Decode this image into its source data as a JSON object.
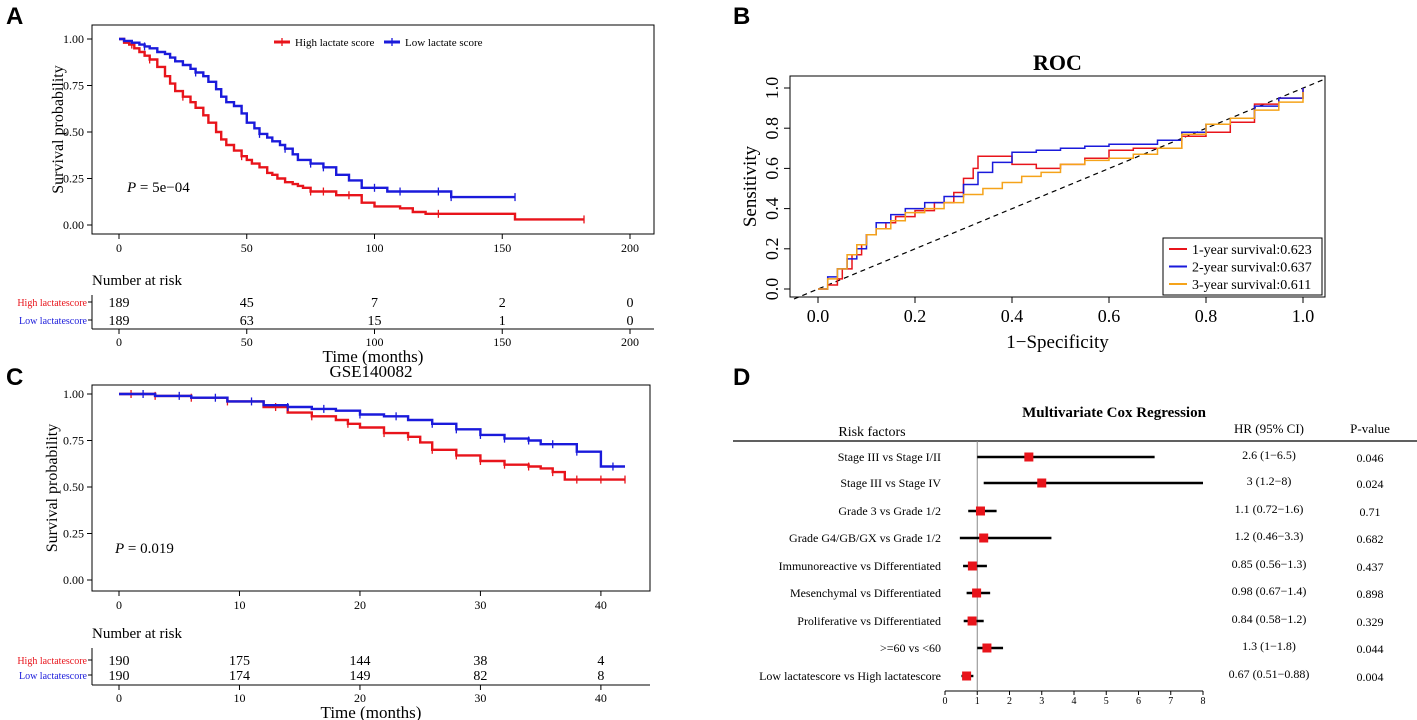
{
  "chart_data": [
    {
      "panel": "A",
      "type": "line",
      "title": "",
      "xlabel": "Time (months)",
      "ylabel": "Survival probability",
      "xlim": [
        0,
        200
      ],
      "ylim": [
        0,
        1
      ],
      "xticks": [
        0,
        50,
        100,
        150,
        200
      ],
      "yticks": [
        0.0,
        0.25,
        0.5,
        0.75,
        1.0
      ],
      "pvalue_label": "P",
      "pvalue_text": " = 5e−04",
      "legend": [
        "High lactate score",
        "Low lactate score"
      ],
      "series": [
        {
          "name": "High lactate score",
          "color": "#e8141b",
          "x": [
            0,
            2,
            4,
            6,
            8,
            10,
            12,
            15,
            18,
            20,
            22,
            25,
            28,
            30,
            33,
            35,
            38,
            40,
            42,
            45,
            48,
            50,
            52,
            55,
            58,
            60,
            62,
            65,
            68,
            70,
            72,
            75,
            80,
            85,
            90,
            95,
            100,
            105,
            110,
            115,
            120,
            125,
            130,
            135,
            140,
            145,
            150,
            155,
            160,
            165,
            170,
            175,
            180,
            182
          ],
          "y": [
            1.0,
            0.98,
            0.97,
            0.95,
            0.93,
            0.91,
            0.89,
            0.85,
            0.8,
            0.76,
            0.72,
            0.69,
            0.66,
            0.63,
            0.59,
            0.55,
            0.5,
            0.46,
            0.43,
            0.4,
            0.37,
            0.35,
            0.33,
            0.31,
            0.28,
            0.27,
            0.25,
            0.23,
            0.22,
            0.21,
            0.2,
            0.18,
            0.18,
            0.16,
            0.16,
            0.12,
            0.1,
            0.1,
            0.09,
            0.07,
            0.06,
            0.06,
            0.06,
            0.06,
            0.06,
            0.06,
            0.06,
            0.03,
            0.03,
            0.03,
            0.03,
            0.03,
            0.03,
            0.03
          ],
          "censor_x": [
            5,
            12,
            25,
            48,
            75,
            80,
            90,
            125,
            182
          ]
        },
        {
          "name": "Low lactate score",
          "color": "#1a1adb",
          "x": [
            0,
            2,
            5,
            8,
            10,
            12,
            15,
            18,
            20,
            22,
            25,
            28,
            30,
            33,
            35,
            38,
            40,
            42,
            45,
            48,
            50,
            53,
            55,
            58,
            60,
            63,
            65,
            68,
            70,
            75,
            80,
            85,
            90,
            95,
            100,
            105,
            110,
            115,
            120,
            125,
            130,
            135,
            140,
            145,
            150,
            155
          ],
          "y": [
            1.0,
            0.99,
            0.98,
            0.97,
            0.96,
            0.95,
            0.93,
            0.92,
            0.9,
            0.88,
            0.86,
            0.84,
            0.82,
            0.8,
            0.77,
            0.73,
            0.69,
            0.66,
            0.64,
            0.6,
            0.55,
            0.52,
            0.49,
            0.47,
            0.45,
            0.43,
            0.41,
            0.38,
            0.35,
            0.33,
            0.31,
            0.27,
            0.24,
            0.2,
            0.2,
            0.18,
            0.18,
            0.18,
            0.18,
            0.18,
            0.15,
            0.15,
            0.15,
            0.15,
            0.15,
            0.15
          ],
          "censor_x": [
            10,
            30,
            55,
            65,
            75,
            80,
            100,
            110,
            125,
            130,
            155
          ]
        }
      ],
      "risk_table": {
        "title": "Number at risk",
        "rows": [
          {
            "label": "High lactatescore",
            "color": "#e8141b",
            "values": [
              "189",
              "45",
              "7",
              "2",
              "0"
            ]
          },
          {
            "label": "Low lactatescore",
            "color": "#1a1adb",
            "values": [
              "189",
              "63",
              "15",
              "1",
              "0"
            ]
          }
        ]
      }
    },
    {
      "panel": "B",
      "type": "line",
      "title": "ROC",
      "xlabel": "1−Specificity",
      "ylabel": "Sensitivity",
      "xlim": [
        0,
        1
      ],
      "ylim": [
        0,
        1
      ],
      "xticks": [
        0.0,
        0.2,
        0.4,
        0.6,
        0.8,
        1.0
      ],
      "yticks": [
        0.0,
        0.2,
        0.4,
        0.6,
        0.8,
        1.0
      ],
      "legend": [
        "1-year survival:0.623",
        "2-year survival:0.637",
        "3-year survival:0.611"
      ],
      "series": [
        {
          "name": "1-year survival:0.623",
          "color": "#e8141b",
          "x": [
            0,
            0.02,
            0.04,
            0.05,
            0.07,
            0.09,
            0.1,
            0.12,
            0.14,
            0.16,
            0.2,
            0.24,
            0.28,
            0.3,
            0.32,
            0.33,
            0.36,
            0.4,
            0.45,
            0.5,
            0.55,
            0.6,
            0.65,
            0.7,
            0.75,
            0.8,
            0.85,
            0.9,
            0.95,
            1.0
          ],
          "y": [
            0,
            0.02,
            0.05,
            0.1,
            0.17,
            0.22,
            0.27,
            0.3,
            0.33,
            0.36,
            0.39,
            0.43,
            0.48,
            0.55,
            0.6,
            0.66,
            0.66,
            0.62,
            0.6,
            0.62,
            0.65,
            0.69,
            0.7,
            0.7,
            0.76,
            0.78,
            0.83,
            0.92,
            0.95,
            1.0
          ]
        },
        {
          "name": "2-year survival:0.637",
          "color": "#1a1adb",
          "x": [
            0,
            0.02,
            0.04,
            0.06,
            0.08,
            0.1,
            0.12,
            0.15,
            0.18,
            0.22,
            0.26,
            0.3,
            0.33,
            0.36,
            0.4,
            0.45,
            0.5,
            0.55,
            0.6,
            0.65,
            0.7,
            0.75,
            0.8,
            0.85,
            0.9,
            0.95,
            1.0
          ],
          "y": [
            0,
            0.06,
            0.1,
            0.15,
            0.2,
            0.27,
            0.33,
            0.37,
            0.4,
            0.43,
            0.46,
            0.52,
            0.58,
            0.63,
            0.68,
            0.69,
            0.7,
            0.71,
            0.72,
            0.72,
            0.74,
            0.78,
            0.82,
            0.85,
            0.91,
            0.95,
            1.0
          ]
        },
        {
          "name": "3-year survival:0.611",
          "color": "#f5a31a",
          "x": [
            0,
            0.02,
            0.04,
            0.06,
            0.08,
            0.1,
            0.12,
            0.15,
            0.18,
            0.22,
            0.26,
            0.3,
            0.34,
            0.38,
            0.42,
            0.46,
            0.5,
            0.55,
            0.6,
            0.65,
            0.7,
            0.75,
            0.8,
            0.85,
            0.9,
            0.95,
            1.0
          ],
          "y": [
            0,
            0.05,
            0.1,
            0.17,
            0.22,
            0.27,
            0.3,
            0.34,
            0.38,
            0.4,
            0.43,
            0.47,
            0.5,
            0.53,
            0.56,
            0.58,
            0.62,
            0.64,
            0.65,
            0.67,
            0.7,
            0.77,
            0.82,
            0.85,
            0.89,
            0.93,
            0.98
          ]
        }
      ]
    },
    {
      "panel": "C",
      "type": "line",
      "title": "GSE140082",
      "xlabel": "Time (months)",
      "ylabel": "Survival probability",
      "xlim": [
        0,
        42
      ],
      "ylim": [
        0,
        1
      ],
      "xticks": [
        0,
        10,
        20,
        30,
        40
      ],
      "yticks": [
        0.0,
        0.25,
        0.5,
        0.75,
        1.0
      ],
      "pvalue_label": "P",
      "pvalue_text": " = 0.019",
      "series": [
        {
          "name": "High lactate score",
          "color": "#e8141b",
          "x": [
            0,
            3,
            6,
            9,
            12,
            14,
            16,
            18,
            19,
            20,
            22,
            24,
            25,
            26,
            28,
            30,
            32,
            34,
            35,
            36,
            37,
            38,
            40,
            42
          ],
          "y": [
            1.0,
            0.99,
            0.98,
            0.96,
            0.93,
            0.9,
            0.88,
            0.86,
            0.84,
            0.82,
            0.79,
            0.77,
            0.74,
            0.7,
            0.67,
            0.64,
            0.62,
            0.61,
            0.6,
            0.58,
            0.54,
            0.54,
            0.54,
            0.54
          ],
          "censor_x": [
            1,
            3,
            6,
            9,
            13,
            16,
            19,
            22,
            24,
            26,
            28,
            30,
            32,
            34,
            36,
            38,
            40,
            42
          ]
        },
        {
          "name": "Low lactate score",
          "color": "#1a1adb",
          "x": [
            0,
            3,
            6,
            9,
            12,
            14,
            16,
            18,
            20,
            22,
            24,
            26,
            28,
            30,
            32,
            34,
            35,
            36,
            38,
            40,
            42
          ],
          "y": [
            1.0,
            0.99,
            0.98,
            0.96,
            0.94,
            0.93,
            0.92,
            0.91,
            0.89,
            0.88,
            0.86,
            0.84,
            0.81,
            0.78,
            0.76,
            0.75,
            0.73,
            0.73,
            0.69,
            0.61,
            0.61
          ],
          "censor_x": [
            2,
            5,
            8,
            11,
            14,
            17,
            20,
            23,
            26,
            28,
            30,
            32,
            34,
            36,
            38,
            41
          ]
        }
      ],
      "risk_table": {
        "title": "Number at risk",
        "rows": [
          {
            "label": "High lactatescore",
            "color": "#e8141b",
            "values": [
              "190",
              "175",
              "144",
              "38",
              "4"
            ]
          },
          {
            "label": "Low lactatescore",
            "color": "#1a1adb",
            "values": [
              "190",
              "174",
              "149",
              "82",
              "8"
            ]
          }
        ]
      }
    },
    {
      "panel": "D",
      "type": "forest",
      "title": "Multivariate Cox Regression",
      "headers": {
        "factor": "Risk factors",
        "hr": "HR (95% CI)",
        "p": "P-value"
      },
      "xlim": [
        0,
        8
      ],
      "xticks": [
        0,
        1,
        2,
        3,
        4,
        5,
        6,
        7,
        8
      ],
      "reference_line": 1,
      "rows": [
        {
          "label": "Stage III vs Stage I/II",
          "hr": 2.6,
          "lo": 1,
          "hi": 6.5,
          "hr_text": "2.6 (1−6.5)",
          "p": "0.046"
        },
        {
          "label": "Stage III vs Stage IV",
          "hr": 3,
          "lo": 1.2,
          "hi": 8,
          "hr_text": "3 (1.2−8)",
          "p": "0.024"
        },
        {
          "label": "Grade 3 vs Grade 1/2",
          "hr": 1.1,
          "lo": 0.72,
          "hi": 1.6,
          "hr_text": "1.1 (0.72−1.6)",
          "p": "0.71"
        },
        {
          "label": "Grade G4/GB/GX vs Grade 1/2",
          "hr": 1.2,
          "lo": 0.46,
          "hi": 3.3,
          "hr_text": "1.2 (0.46−3.3)",
          "p": "0.682"
        },
        {
          "label": "Immunoreactive vs Differentiated",
          "hr": 0.85,
          "lo": 0.56,
          "hi": 1.3,
          "hr_text": "0.85 (0.56−1.3)",
          "p": "0.437"
        },
        {
          "label": "Mesenchymal vs Differentiated",
          "hr": 0.98,
          "lo": 0.67,
          "hi": 1.4,
          "hr_text": "0.98 (0.67−1.4)",
          "p": "0.898"
        },
        {
          "label": "Proliferative vs Differentiated",
          "hr": 0.84,
          "lo": 0.58,
          "hi": 1.2,
          "hr_text": "0.84 (0.58−1.2)",
          "p": "0.329"
        },
        {
          "label": ">=60 vs <60",
          "hr": 1.3,
          "lo": 1,
          "hi": 1.8,
          "hr_text": "1.3 (1−1.8)",
          "p": "0.044"
        },
        {
          "label": "Low lactatescore vs High lactatescore",
          "hr": 0.67,
          "lo": 0.51,
          "hi": 0.88,
          "hr_text": "0.67 (0.51−0.88)",
          "p": "0.004"
        }
      ]
    }
  ],
  "panels": {
    "a": "A",
    "b": "B",
    "c": "C",
    "d": "D"
  }
}
